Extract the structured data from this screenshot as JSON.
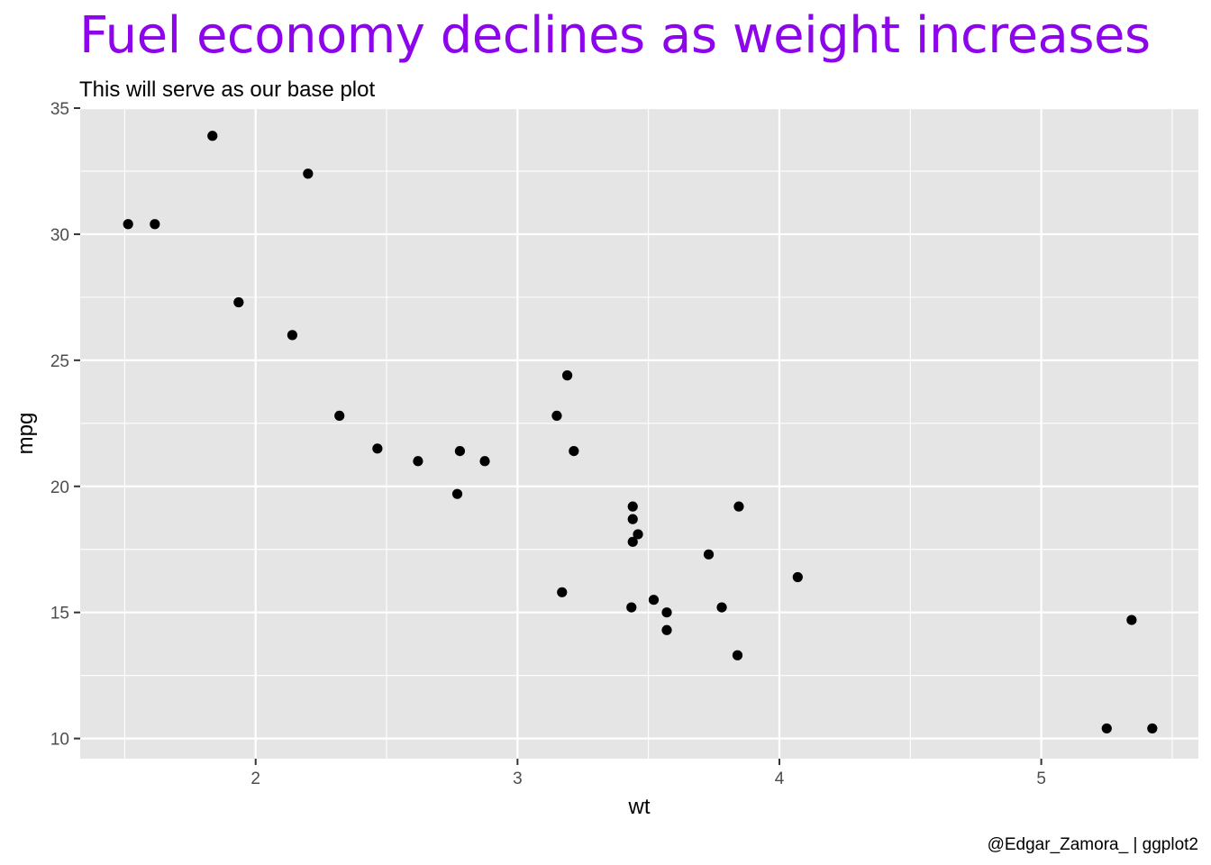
{
  "chart_data": {
    "type": "scatter",
    "title": "Fuel economy declines as weight increases",
    "subtitle": "This will serve as our base plot",
    "caption": "@Edgar_Zamora_ | ggplot2",
    "xlabel": "wt",
    "ylabel": "mpg",
    "xlim": [
      1.33,
      5.6
    ],
    "ylim": [
      9.2,
      35
    ],
    "x_ticks": [
      2,
      3,
      4,
      5
    ],
    "y_ticks": [
      10,
      15,
      20,
      25,
      30,
      35
    ],
    "grid": true,
    "title_color": "#8D05EA",
    "panel_background": "#E5E5E5",
    "point_color": "#000000",
    "points": [
      {
        "x": 2.62,
        "y": 21.0
      },
      {
        "x": 2.875,
        "y": 21.0
      },
      {
        "x": 2.32,
        "y": 22.8
      },
      {
        "x": 3.215,
        "y": 21.4
      },
      {
        "x": 3.44,
        "y": 18.7
      },
      {
        "x": 3.46,
        "y": 18.1
      },
      {
        "x": 3.57,
        "y": 14.3
      },
      {
        "x": 3.19,
        "y": 24.4
      },
      {
        "x": 3.15,
        "y": 22.8
      },
      {
        "x": 3.44,
        "y": 19.2
      },
      {
        "x": 3.44,
        "y": 17.8
      },
      {
        "x": 4.07,
        "y": 16.4
      },
      {
        "x": 3.73,
        "y": 17.3
      },
      {
        "x": 3.78,
        "y": 15.2
      },
      {
        "x": 5.25,
        "y": 10.4
      },
      {
        "x": 5.424,
        "y": 10.4
      },
      {
        "x": 5.345,
        "y": 14.7
      },
      {
        "x": 2.2,
        "y": 32.4
      },
      {
        "x": 1.615,
        "y": 30.4
      },
      {
        "x": 1.835,
        "y": 33.9
      },
      {
        "x": 2.465,
        "y": 21.5
      },
      {
        "x": 3.52,
        "y": 15.5
      },
      {
        "x": 3.435,
        "y": 15.2
      },
      {
        "x": 3.84,
        "y": 13.3
      },
      {
        "x": 3.845,
        "y": 19.2
      },
      {
        "x": 1.935,
        "y": 27.3
      },
      {
        "x": 2.14,
        "y": 26.0
      },
      {
        "x": 1.513,
        "y": 30.4
      },
      {
        "x": 3.17,
        "y": 15.8
      },
      {
        "x": 2.77,
        "y": 19.7
      },
      {
        "x": 3.57,
        "y": 15.0
      },
      {
        "x": 2.78,
        "y": 21.4
      }
    ]
  }
}
